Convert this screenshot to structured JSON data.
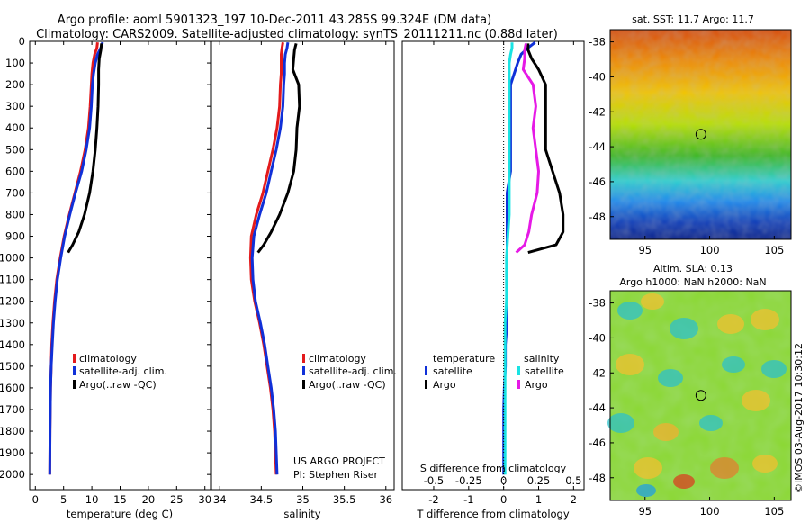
{
  "figure": {
    "title_line1": "Argo profile: aoml 5901323_197 10-Dec-2011 43.285S 99.324E (DM data)",
    "title_line2": "Climatology: CARS2009. Satellite-adjusted climatology: synTS_20111211.nc (0.88d later)",
    "map1_title": "sat. SST: 11.7 Argo: 11.7",
    "map2_title_line1": "Altim. SLA: 0.13",
    "map2_title_line2": "Argo h1000: NaN h2000: NaN",
    "credit": "US ARGO PROJECT",
    "pi": "PI: Stephen Riser",
    "watermark": "©IMOS 03-Aug-2017 10:30:12"
  },
  "colors": {
    "climatology": "#e31a1c",
    "satellite": "#1030d8",
    "argo": "#000000",
    "satellite_salinity": "#19e3e3",
    "argo_salinity": "#e619e6"
  },
  "chart_data": [
    {
      "type": "line",
      "id": "temperature",
      "xlabel": "temperature (deg C)",
      "ylabel": "",
      "xlim": [
        -1,
        31
      ],
      "ylim": [
        2070,
        0
      ],
      "xticks": [
        0,
        5,
        10,
        15,
        20,
        25,
        30
      ],
      "yticks": [
        0,
        100,
        200,
        300,
        400,
        500,
        600,
        700,
        800,
        900,
        1000,
        1100,
        1200,
        1300,
        1400,
        1500,
        1600,
        1700,
        1800,
        1900,
        2000
      ],
      "legend": [
        "climatology",
        "satellite-adj. clim.",
        "Argo(..raw -QC)"
      ],
      "series": [
        {
          "name": "climatology",
          "color": "#e31a1c",
          "x": [
            11.0,
            10.9,
            10.5,
            10.2,
            10.0,
            9.9,
            9.7,
            9.4,
            8.8,
            8.0,
            7.0,
            6.0,
            5.1,
            4.4,
            3.8,
            3.4,
            3.1,
            2.9,
            2.8,
            2.7,
            2.65,
            2.6,
            2.55
          ],
          "y": [
            5,
            30,
            60,
            100,
            150,
            200,
            300,
            400,
            500,
            600,
            700,
            800,
            900,
            1000,
            1100,
            1200,
            1300,
            1400,
            1500,
            1600,
            1700,
            1800,
            2000
          ]
        },
        {
          "name": "satellite-adj. clim.",
          "color": "#1030d8",
          "x": [
            11.9,
            11.6,
            11.0,
            10.6,
            10.3,
            10.1,
            9.9,
            9.6,
            9.0,
            8.2,
            7.1,
            6.1,
            5.2,
            4.5,
            3.9,
            3.5,
            3.2,
            3.0,
            2.8,
            2.7,
            2.65,
            2.6,
            2.55
          ],
          "y": [
            5,
            30,
            60,
            100,
            150,
            200,
            300,
            400,
            500,
            600,
            700,
            800,
            900,
            1000,
            1100,
            1200,
            1300,
            1400,
            1500,
            1600,
            1700,
            1800,
            2000
          ]
        },
        {
          "name": "Argo(..raw -QC)",
          "color": "#000000",
          "x": [
            11.7,
            11.6,
            11.3,
            11.2,
            11.2,
            11.1,
            10.9,
            10.6,
            10.2,
            9.6,
            8.7,
            7.7,
            6.6,
            5.8
          ],
          "y": [
            10,
            40,
            80,
            130,
            200,
            300,
            400,
            500,
            600,
            700,
            800,
            880,
            940,
            975
          ]
        }
      ]
    },
    {
      "type": "line",
      "id": "salinity",
      "xlabel": "salinity",
      "ylabel": "",
      "xlim": [
        33.9,
        36.1
      ],
      "ylim": [
        2070,
        0
      ],
      "xticks": [
        34,
        34.5,
        35,
        35.5,
        36
      ],
      "legend": [
        "climatology",
        "satellite-adj. clim.",
        "Argo(..raw -QC)"
      ],
      "series": [
        {
          "name": "climatology",
          "color": "#e31a1c",
          "x": [
            34.76,
            34.75,
            34.74,
            34.74,
            34.74,
            34.73,
            34.72,
            34.69,
            34.64,
            34.58,
            34.52,
            34.44,
            34.38,
            34.37,
            34.38,
            34.42,
            34.48,
            34.53,
            34.57,
            34.61,
            34.64,
            34.66,
            34.68
          ],
          "y": [
            5,
            30,
            60,
            100,
            150,
            200,
            300,
            400,
            500,
            600,
            700,
            800,
            900,
            1000,
            1100,
            1200,
            1300,
            1400,
            1500,
            1600,
            1700,
            1800,
            2000
          ]
        },
        {
          "name": "satellite-adj. clim.",
          "color": "#1030d8",
          "x": [
            34.82,
            34.81,
            34.79,
            34.78,
            34.78,
            34.77,
            34.76,
            34.73,
            34.68,
            34.62,
            34.56,
            34.48,
            34.41,
            34.39,
            34.4,
            34.43,
            34.49,
            34.54,
            34.58,
            34.62,
            34.65,
            34.67,
            34.69
          ],
          "y": [
            5,
            30,
            60,
            100,
            150,
            200,
            300,
            400,
            500,
            600,
            700,
            800,
            900,
            1000,
            1100,
            1200,
            1300,
            1400,
            1500,
            1600,
            1700,
            1800,
            2000
          ]
        },
        {
          "name": "Argo(..raw -QC)",
          "color": "#000000",
          "x": [
            34.92,
            34.9,
            34.89,
            34.88,
            34.95,
            34.96,
            34.93,
            34.92,
            34.89,
            34.82,
            34.72,
            34.62,
            34.53,
            34.46
          ],
          "y": [
            10,
            40,
            80,
            130,
            200,
            300,
            400,
            500,
            600,
            700,
            800,
            880,
            940,
            975
          ]
        }
      ]
    },
    {
      "type": "line",
      "id": "difference",
      "xlabel": "T difference from climatology",
      "x2label": "S difference from climatology",
      "ylabel": "",
      "xlim": [
        -2.9,
        2.3
      ],
      "ylim": [
        2070,
        0
      ],
      "xticks": [
        -2,
        -1,
        0,
        1,
        2
      ],
      "x2ticks": [
        -0.5,
        -0.25,
        0,
        0.25,
        0.5
      ],
      "legend_titles": [
        "temperature",
        "salinity"
      ],
      "legend": [
        "satellite",
        "Argo",
        "satellite",
        "Argo"
      ],
      "series": [
        {
          "name": "satellite",
          "color": "#1030d8",
          "x": [
            0.9,
            0.7,
            0.5,
            0.4,
            0.3,
            0.2,
            0.2,
            0.2,
            0.2,
            0.2,
            0.1,
            0.1,
            0.1,
            0.1,
            0.1,
            0.1,
            0.1,
            0.05,
            0.05,
            0.02,
            0.0,
            0.0,
            0.0
          ],
          "y": [
            5,
            30,
            60,
            100,
            150,
            200,
            300,
            400,
            500,
            600,
            700,
            800,
            900,
            1000,
            1100,
            1200,
            1300,
            1400,
            1500,
            1600,
            1700,
            1800,
            2000
          ]
        },
        {
          "name": "Argo",
          "color": "#000000",
          "x": [
            0.7,
            0.7,
            0.8,
            1.0,
            1.2,
            1.2,
            1.2,
            1.2,
            1.4,
            1.6,
            1.7,
            1.7,
            1.5,
            0.7
          ],
          "y": [
            10,
            40,
            80,
            130,
            200,
            300,
            400,
            500,
            600,
            700,
            800,
            880,
            940,
            975
          ]
        },
        {
          "name": "satellite",
          "color": "#19e3e3",
          "x": [
            0.06,
            0.06,
            0.05,
            0.04,
            0.04,
            0.04,
            0.04,
            0.04,
            0.04,
            0.04,
            0.04,
            0.04,
            0.03,
            0.02,
            0.02,
            0.02,
            0.01,
            0.01,
            0.01,
            0.01,
            0.01,
            0.01,
            0.01
          ],
          "y": [
            5,
            30,
            60,
            100,
            150,
            200,
            300,
            400,
            500,
            600,
            700,
            800,
            900,
            1000,
            1100,
            1200,
            1300,
            1400,
            1500,
            1600,
            1700,
            1800,
            2000
          ]
        },
        {
          "name": "Argo",
          "color": "#e619e6",
          "x": [
            0.16,
            0.15,
            0.15,
            0.14,
            0.21,
            0.23,
            0.21,
            0.23,
            0.25,
            0.24,
            0.2,
            0.18,
            0.15,
            0.09
          ],
          "y": [
            10,
            40,
            80,
            130,
            200,
            300,
            400,
            500,
            600,
            700,
            800,
            880,
            940,
            975
          ]
        }
      ]
    },
    {
      "type": "heatmap",
      "id": "sst_map",
      "title": "sat. SST: 11.7 Argo: 11.7",
      "xlim": [
        92.3,
        106.3
      ],
      "ylim": [
        -49.3,
        -37.3
      ],
      "xticks": [
        95,
        100,
        105
      ],
      "yticks": [
        -38,
        -40,
        -42,
        -44,
        -46,
        -48
      ],
      "marker": {
        "lon": 99.324,
        "lat": -43.285
      }
    },
    {
      "type": "heatmap",
      "id": "sla_map",
      "title": "Altim. SLA: 0.13 / Argo h1000: NaN h2000: NaN",
      "xlim": [
        92.3,
        106.3
      ],
      "ylim": [
        -49.3,
        -37.3
      ],
      "xticks": [
        95,
        100,
        105
      ],
      "yticks": [
        -38,
        -40,
        -42,
        -44,
        -46,
        -48
      ],
      "marker": {
        "lon": 99.324,
        "lat": -43.285
      }
    }
  ]
}
